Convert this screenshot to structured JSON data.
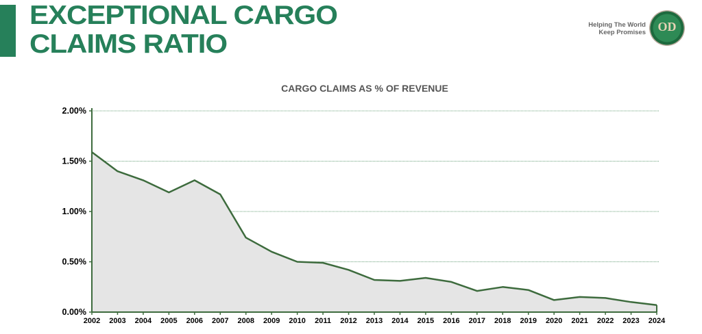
{
  "header": {
    "title_line1": "EXCEPTIONAL CARGO",
    "title_line2": "CLAIMS RATIO",
    "tagline_line1": "Helping The World",
    "tagline_line2": "Keep Promises",
    "logo_text": "OD"
  },
  "colors": {
    "brand": "#26805a",
    "line": "#3d6b3d",
    "fill": "#e5e5e5",
    "grid": "#6aa07a"
  },
  "chart_data": {
    "type": "area",
    "title": "CARGO CLAIMS AS % OF REVENUE",
    "xlabel": "",
    "ylabel": "",
    "categories": [
      "2002",
      "2003",
      "2004",
      "2005",
      "2006",
      "2007",
      "2008",
      "2009",
      "2010",
      "2011",
      "2012",
      "2013",
      "2014",
      "2015",
      "2016",
      "2017",
      "2018",
      "2019",
      "2020",
      "2021",
      "2022",
      "2023",
      "2024"
    ],
    "values": [
      1.59,
      1.4,
      1.31,
      1.19,
      1.31,
      1.17,
      0.74,
      0.6,
      0.5,
      0.49,
      0.42,
      0.32,
      0.31,
      0.34,
      0.3,
      0.21,
      0.25,
      0.22,
      0.12,
      0.15,
      0.14,
      0.1,
      0.07
    ],
    "unit": "%",
    "ylim": [
      0,
      2.0
    ],
    "yticks": [
      "0.00%",
      "0.50%",
      "1.00%",
      "1.50%",
      "2.00%"
    ],
    "grid": true,
    "legend": "none"
  }
}
